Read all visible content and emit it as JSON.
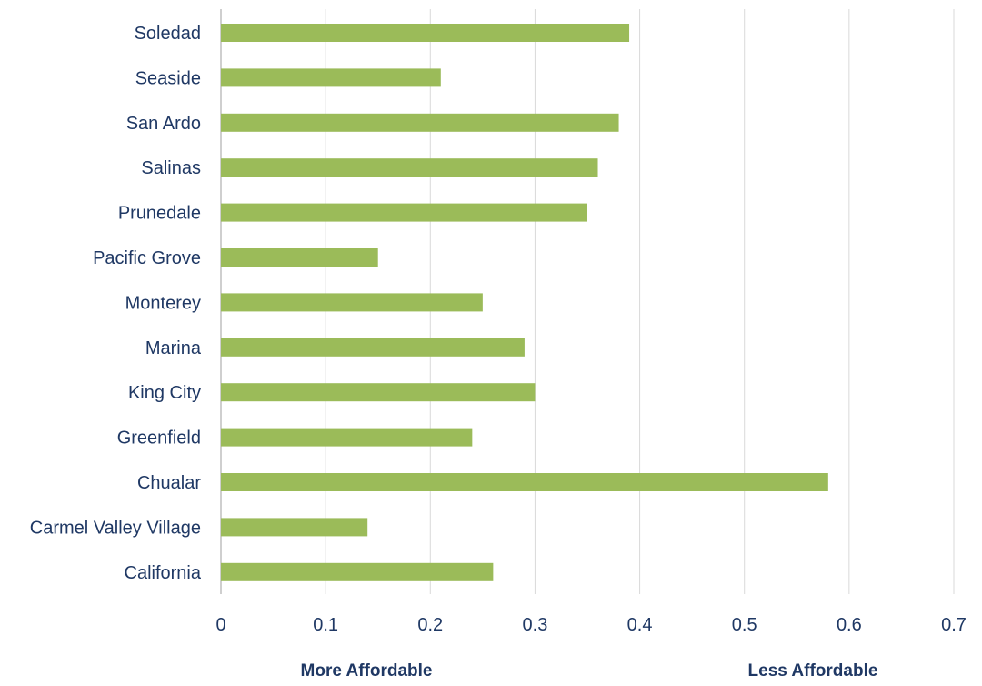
{
  "chart_data": {
    "type": "bar",
    "orientation": "horizontal",
    "categories": [
      "Soledad",
      "Seaside",
      "San Ardo",
      "Salinas",
      "Prunedale",
      "Pacific Grove",
      "Monterey",
      "Marina",
      "King City",
      "Greenfield",
      "Chualar",
      "Carmel Valley Village",
      "California"
    ],
    "values": [
      0.39,
      0.21,
      0.38,
      0.36,
      0.35,
      0.15,
      0.25,
      0.29,
      0.3,
      0.24,
      0.58,
      0.14,
      0.26
    ],
    "xlim": [
      0,
      0.7
    ],
    "xticks": [
      "0",
      "0.1",
      "0.2",
      "0.3",
      "0.4",
      "0.5",
      "0.6",
      "0.7"
    ],
    "grid": "vertical",
    "bar_color": "#9bbb59",
    "annotations": {
      "left": "More Affordable",
      "right": "Less Affordable"
    }
  }
}
